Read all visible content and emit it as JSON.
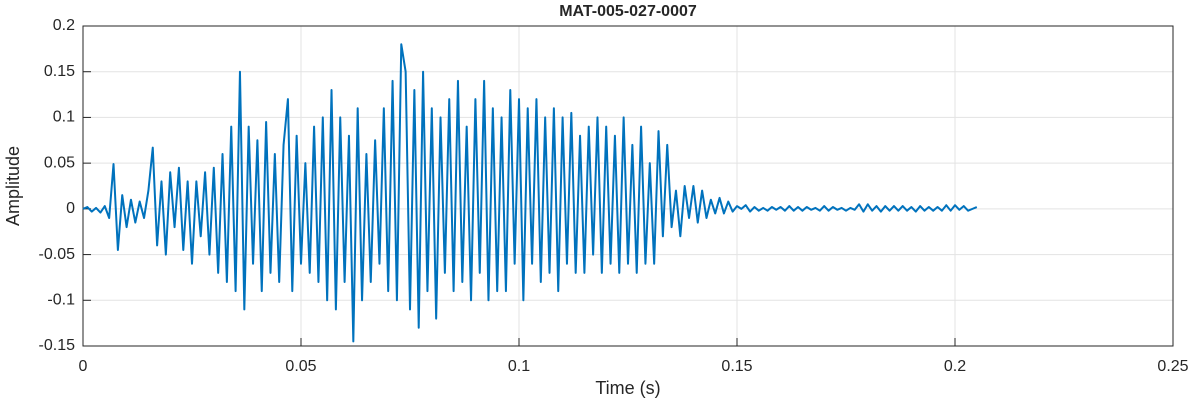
{
  "chart_data": {
    "type": "line",
    "title": "MAT-005-027-0007",
    "x_label": "Time (s)",
    "y_label": "Amplitude",
    "xlim": [
      0,
      0.25
    ],
    "xticks": [
      0,
      0.05,
      0.1,
      0.15,
      0.2,
      0.25
    ],
    "ylim": [
      -0.15,
      0.2
    ],
    "yticks": [
      -0.15,
      -0.1,
      -0.05,
      0,
      0.05,
      0.1,
      0.15,
      0.2
    ],
    "grid": true,
    "x": [
      0,
      0.001,
      0.002,
      0.003,
      0.004,
      0.005,
      0.006,
      0.007,
      0.008,
      0.009,
      0.01,
      0.011,
      0.012,
      0.013,
      0.014,
      0.015,
      0.016,
      0.017,
      0.018,
      0.019,
      0.02,
      0.021,
      0.022,
      0.023,
      0.024,
      0.025,
      0.026,
      0.027,
      0.028,
      0.029,
      0.03,
      0.031,
      0.032,
      0.033,
      0.034,
      0.035,
      0.036,
      0.037,
      0.038,
      0.039,
      0.04,
      0.041,
      0.042,
      0.043,
      0.044,
      0.045,
      0.046,
      0.047,
      0.048,
      0.049,
      0.05,
      0.051,
      0.052,
      0.053,
      0.054,
      0.055,
      0.056,
      0.057,
      0.058,
      0.059,
      0.06,
      0.061,
      0.062,
      0.063,
      0.064,
      0.065,
      0.066,
      0.067,
      0.068,
      0.069,
      0.07,
      0.071,
      0.072,
      0.073,
      0.074,
      0.075,
      0.076,
      0.077,
      0.078,
      0.079,
      0.08,
      0.081,
      0.082,
      0.083,
      0.084,
      0.085,
      0.086,
      0.087,
      0.088,
      0.089,
      0.09,
      0.091,
      0.092,
      0.093,
      0.094,
      0.095,
      0.096,
      0.097,
      0.098,
      0.099,
      0.1,
      0.101,
      0.102,
      0.103,
      0.104,
      0.105,
      0.106,
      0.107,
      0.108,
      0.109,
      0.11,
      0.111,
      0.112,
      0.113,
      0.114,
      0.115,
      0.116,
      0.117,
      0.118,
      0.119,
      0.12,
      0.121,
      0.122,
      0.123,
      0.124,
      0.125,
      0.126,
      0.127,
      0.128,
      0.129,
      0.13,
      0.131,
      0.132,
      0.133,
      0.134,
      0.135,
      0.136,
      0.137,
      0.138,
      0.139,
      0.14,
      0.141,
      0.142,
      0.143,
      0.144,
      0.145,
      0.146,
      0.147,
      0.148,
      0.149,
      0.15,
      0.151,
      0.152,
      0.153,
      0.154,
      0.155,
      0.156,
      0.157,
      0.158,
      0.159,
      0.16,
      0.161,
      0.162,
      0.163,
      0.164,
      0.165,
      0.166,
      0.167,
      0.168,
      0.169,
      0.17,
      0.171,
      0.172,
      0.173,
      0.174,
      0.175,
      0.176,
      0.177,
      0.178,
      0.179,
      0.18,
      0.181,
      0.182,
      0.183,
      0.184,
      0.185,
      0.186,
      0.187,
      0.188,
      0.189,
      0.19,
      0.191,
      0.192,
      0.193,
      0.194,
      0.195,
      0.196,
      0.197,
      0.198,
      0.199,
      0.2,
      0.201,
      0.202,
      0.203,
      0.204,
      0.205
    ],
    "series": [
      {
        "color": "#0072bd",
        "values": [
          0,
          0.002,
          -0.003,
          0.001,
          -0.004,
          0.003,
          -0.01,
          0.049,
          -0.045,
          0.015,
          -0.02,
          0.01,
          -0.015,
          0.008,
          -0.01,
          0.02,
          0.067,
          -0.04,
          0.03,
          -0.05,
          0.04,
          -0.02,
          0.045,
          -0.045,
          0.03,
          -0.06,
          0.03,
          -0.03,
          0.04,
          -0.05,
          0.045,
          -0.07,
          0.06,
          -0.08,
          0.09,
          -0.09,
          0.15,
          -0.11,
          0.09,
          -0.06,
          0.075,
          -0.09,
          0.095,
          -0.07,
          0.06,
          -0.08,
          0.07,
          0.12,
          -0.09,
          0.08,
          -0.06,
          0.05,
          -0.07,
          0.09,
          -0.08,
          0.1,
          -0.1,
          0.13,
          -0.11,
          0.1,
          -0.08,
          0.08,
          -0.145,
          0.11,
          -0.1,
          0.06,
          -0.08,
          0.075,
          -0.06,
          0.11,
          -0.09,
          0.14,
          -0.1,
          0.18,
          0.15,
          -0.11,
          0.13,
          -0.13,
          0.15,
          -0.09,
          0.11,
          -0.12,
          0.1,
          -0.07,
          0.12,
          -0.09,
          0.14,
          -0.08,
          0.09,
          -0.1,
          0.12,
          -0.07,
          0.14,
          -0.1,
          0.11,
          -0.09,
          0.1,
          -0.09,
          0.13,
          -0.06,
          0.12,
          -0.1,
          0.11,
          -0.06,
          0.12,
          -0.08,
          0.1,
          -0.07,
          0.11,
          -0.09,
          0.1,
          -0.06,
          0.105,
          -0.07,
          0.08,
          -0.07,
          0.09,
          -0.05,
          0.1,
          -0.07,
          0.09,
          -0.06,
          0.08,
          -0.07,
          0.1,
          -0.06,
          0.07,
          -0.07,
          0.09,
          -0.06,
          0.05,
          -0.06,
          0.085,
          -0.03,
          0.07,
          -0.02,
          0.02,
          -0.03,
          0.025,
          -0.01,
          0.025,
          -0.015,
          0.02,
          -0.01,
          0.01,
          -0.005,
          0.012,
          -0.005,
          0.008,
          -0.003,
          0.003,
          0,
          0.004,
          -0.003,
          0.002,
          -0.002,
          0.001,
          -0.002,
          0.002,
          -0.001,
          0.002,
          -0.002,
          0.003,
          -0.002,
          0.002,
          -0.002,
          0.002,
          -0.001,
          0.001,
          -0.002,
          0.003,
          -0.002,
          0.002,
          -0.001,
          0.001,
          -0.002,
          0.001,
          -0.001,
          0.005,
          -0.003,
          0.005,
          -0.002,
          0.003,
          -0.003,
          0.003,
          -0.002,
          0.003,
          -0.002,
          0.003,
          -0.002,
          0.002,
          -0.003,
          0.003,
          -0.002,
          0.002,
          -0.002,
          0.002,
          -0.002,
          0.004,
          -0.002,
          0.004,
          -0.001,
          0.003,
          -0.002,
          0,
          0.002
        ]
      }
    ]
  }
}
